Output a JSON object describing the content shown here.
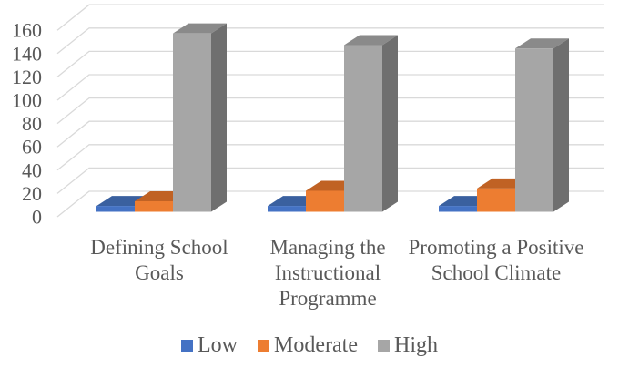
{
  "chart_data": {
    "type": "bar",
    "style": "3d-column",
    "title": "",
    "xlabel": "",
    "ylabel": "",
    "categories": [
      "Defining School Goals",
      "Managing the Instructional Programme",
      "Promoting a Positive School Climate"
    ],
    "series": [
      {
        "name": "Low",
        "color": "#4472C4",
        "color_top": "#3A609F",
        "color_side": "#2E4D80",
        "values": [
          5,
          5,
          5
        ]
      },
      {
        "name": "Moderate",
        "color": "#ED7D31",
        "color_top": "#C06224",
        "color_side": "#9E5019",
        "values": [
          9,
          18,
          20
        ]
      },
      {
        "name": "High",
        "color": "#A6A6A6",
        "color_top": "#8A8A8A",
        "color_side": "#6F6F6F",
        "values": [
          153,
          143,
          140
        ]
      }
    ],
    "ylim": [
      0,
      160
    ],
    "ytick_step": 20,
    "yticks": [
      0,
      20,
      40,
      60,
      80,
      100,
      120,
      140,
      160
    ],
    "grid": true,
    "gridline_color": "#D9D9D9",
    "text_color": "#595959",
    "background": "#FFFFFF",
    "legend_position": "bottom"
  }
}
